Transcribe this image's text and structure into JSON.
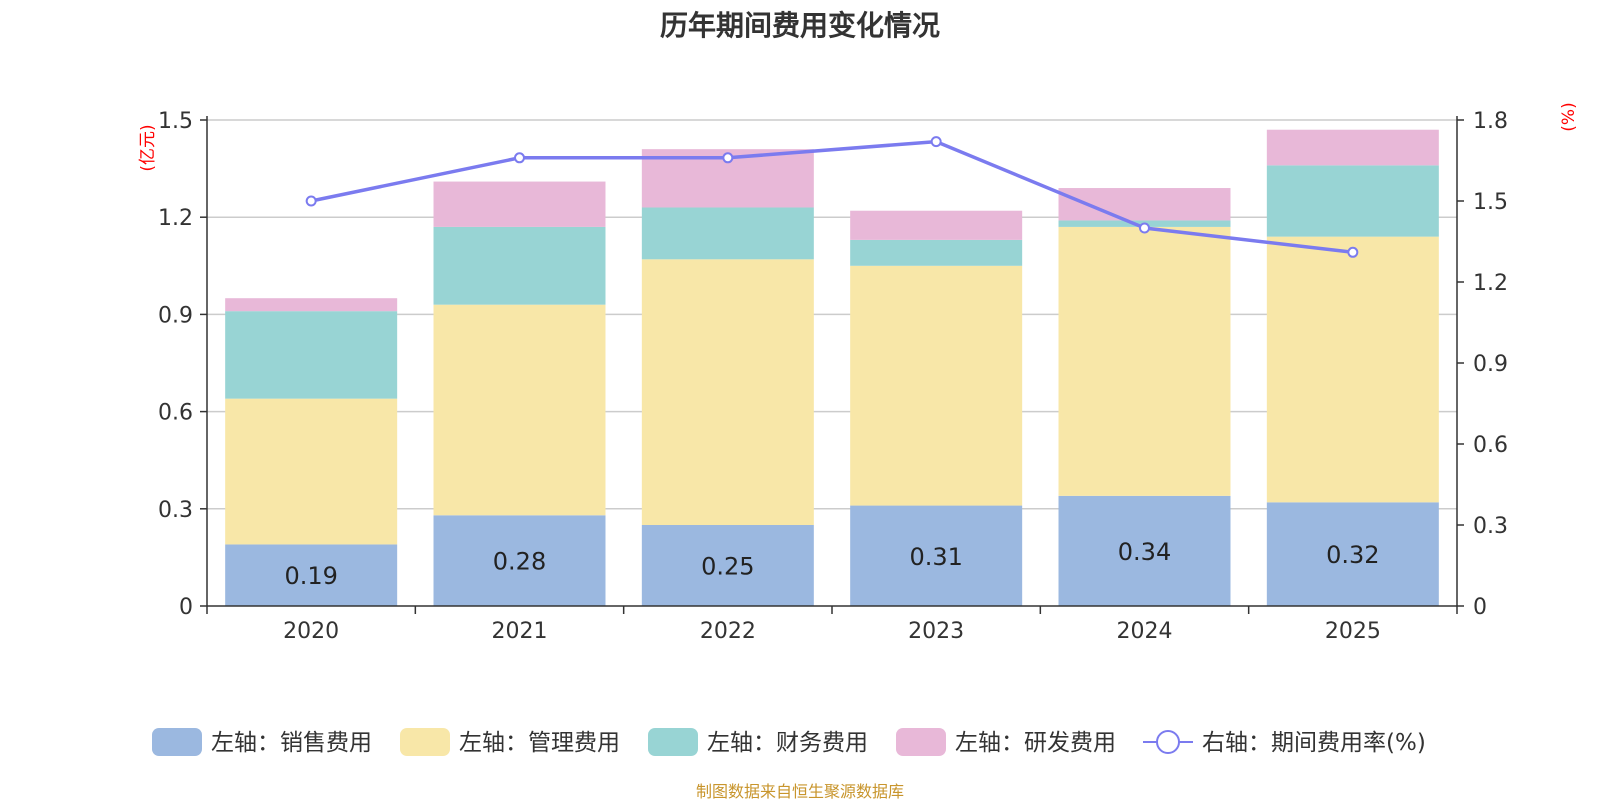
{
  "title": "历年期间费用变化情况",
  "source": "制图数据来自恒生聚源数据库",
  "chart_data": {
    "type": "bar",
    "stacked": true,
    "title": "历年期间费用变化情况",
    "categories": [
      "2020",
      "2021",
      "2022",
      "2023",
      "2024",
      "2025"
    ],
    "left_axis": {
      "unit": "(亿元)",
      "ylim": [
        0,
        1.5
      ],
      "ticks": [
        "0",
        "0.3",
        "0.6",
        "0.9",
        "1.2",
        "1.5"
      ]
    },
    "right_axis": {
      "unit": "(%)",
      "ylim": [
        0,
        1.8
      ],
      "ticks": [
        "0",
        "0.3",
        "0.6",
        "0.9",
        "1.2",
        "1.5",
        "1.8"
      ]
    },
    "series": [
      {
        "name": "左轴：销售费用",
        "axis": "left",
        "color": "#9bb8e0",
        "values": [
          0.19,
          0.28,
          0.25,
          0.31,
          0.34,
          0.32
        ],
        "labels": [
          "0.19",
          "0.28",
          "0.25",
          "0.31",
          "0.34",
          "0.32"
        ]
      },
      {
        "name": "左轴：管理费用",
        "axis": "left",
        "color": "#f8e7a8",
        "values": [
          0.45,
          0.65,
          0.82,
          0.74,
          0.83,
          0.82
        ]
      },
      {
        "name": "左轴：财务费用",
        "axis": "left",
        "color": "#98d4d4",
        "values": [
          0.27,
          0.24,
          0.16,
          0.08,
          0.02,
          0.22
        ]
      },
      {
        "name": "左轴：研发费用",
        "axis": "left",
        "color": "#e8b8d8",
        "values": [
          0.04,
          0.14,
          0.18,
          0.09,
          0.1,
          0.11
        ]
      },
      {
        "name": "右轴：期间费用率(%)",
        "axis": "right",
        "type": "line",
        "color": "#7b7bef",
        "values": [
          1.5,
          1.66,
          1.66,
          1.72,
          1.4,
          1.31
        ]
      }
    ]
  }
}
